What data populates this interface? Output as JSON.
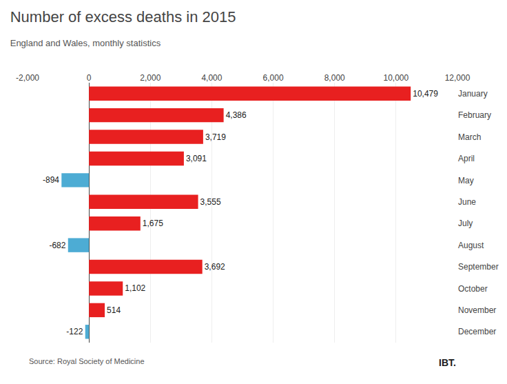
{
  "chart_data": {
    "type": "bar",
    "orientation": "horizontal",
    "title": "Number of excess deaths in 2015",
    "subtitle": "England and Wales, monthly statistics",
    "annotations": [
      "Source: Royal Society of Medicine",
      "IBT."
    ],
    "categories": [
      "January",
      "February",
      "March",
      "April",
      "May",
      "June",
      "July",
      "August",
      "September",
      "October",
      "November",
      "December"
    ],
    "values": [
      10479,
      4386,
      3719,
      3091,
      -894,
      3555,
      1675,
      -682,
      3692,
      1102,
      514,
      -122
    ],
    "value_labels": [
      "10,479",
      "4,386",
      "3,719",
      "3,091",
      "-894",
      "3,555",
      "1,675",
      "-682",
      "3,692",
      "1,102",
      "514",
      "-122"
    ],
    "data_labels": true,
    "colors": [
      "#e82020",
      "#e82020",
      "#e82020",
      "#e82020",
      "#4dacd4",
      "#e82020",
      "#e82020",
      "#4dacd4",
      "#e82020",
      "#e82020",
      "#e82020",
      "#4dacd4"
    ],
    "xlim": [
      -2000,
      12000
    ],
    "xticks": [
      {
        "value": -2000,
        "label": "-2,000"
      },
      0,
      {
        "value": 2000,
        "label": "2,000"
      },
      {
        "value": 4000,
        "label": "4,000"
      },
      {
        "value": 6000,
        "label": "6,000"
      },
      {
        "value": 8000,
        "label": "8,000"
      },
      {
        "value": 10000,
        "label": "10,000"
      },
      {
        "value": 12000,
        "label": "12,000"
      }
    ],
    "grid": true
  }
}
